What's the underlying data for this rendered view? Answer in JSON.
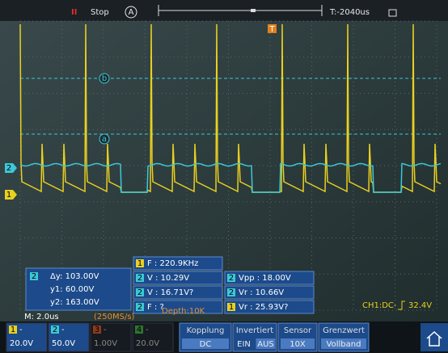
{
  "header": {
    "run_state": "Stop",
    "trigger_mode": "A",
    "time_offset": "T:-2040us"
  },
  "markers": {
    "cursor_b": "b",
    "cursor_a": "a",
    "trigger": "T",
    "ch2": "2",
    "ch1": "1"
  },
  "cursor_box": {
    "channel": "2",
    "dy": "Δy: 103.00V",
    "y1": "y1: 60.00V",
    "y2": "y2: 163.00V"
  },
  "measurements": [
    {
      "channel": "1",
      "text": "F : 220.9KHz"
    },
    {
      "channel": "2",
      "text": "V : 10.29V"
    },
    {
      "channel": "2",
      "text": "V : 16.71V?"
    },
    {
      "channel": "2",
      "text": "F :   ?"
    },
    {
      "channel": "2",
      "text": "Vpp : 18.00V"
    },
    {
      "channel": "2",
      "text": "Vr : 10.66V"
    },
    {
      "channel": "1",
      "text": "Vr : 25.93V?"
    }
  ],
  "status_bar": {
    "timebase": "M: 2.0us",
    "sample_rate": "(250MS/s)",
    "depth": "Depth:10K",
    "trigger": "CH1:DC-",
    "trigger_level": "32.4V"
  },
  "channels": [
    {
      "number": "1",
      "coupling": "-",
      "scale": "20.0V"
    },
    {
      "number": "2",
      "coupling": "-",
      "scale": "50.0V"
    },
    {
      "number": "3",
      "coupling": "-",
      "scale": "1.00V"
    },
    {
      "number": "4",
      "coupling": "-",
      "scale": "20.0V"
    }
  ],
  "menu": [
    {
      "label": "Kopplung",
      "values": [
        "DC"
      ]
    },
    {
      "label": "Invertiert",
      "values": [
        "EIN",
        "AUS"
      ]
    },
    {
      "label": "Sensor",
      "values": [
        "10X"
      ]
    },
    {
      "label": "Grenzwert",
      "values": [
        "Vollband"
      ]
    }
  ]
}
